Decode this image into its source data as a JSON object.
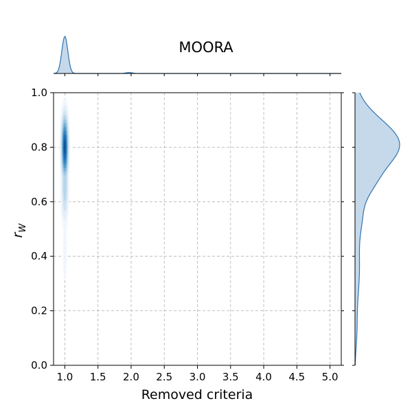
{
  "chart_data": {
    "type": "kde-joint",
    "title": "MOORA",
    "xlabel": "Removed criteria",
    "ylabel_base": "r",
    "ylabel_sub": "W",
    "xlim": [
      0.83,
      5.17
    ],
    "ylim": [
      0,
      1
    ],
    "x_ticks": [
      1.0,
      1.5,
      2.0,
      2.5,
      3.0,
      3.5,
      4.0,
      4.5,
      5.0
    ],
    "x_tick_labels": [
      "1.0",
      "1.5",
      "2.0",
      "2.5",
      "3.0",
      "3.5",
      "4.0",
      "4.5",
      "5.0"
    ],
    "y_ticks": [
      0.0,
      0.2,
      0.4,
      0.6,
      0.8,
      1.0
    ],
    "y_tick_labels": [
      "0.0",
      "0.2",
      "0.4",
      "0.6",
      "0.8",
      "1.0"
    ],
    "grid": true,
    "colors": {
      "fill": "#c5d9eb",
      "line": "#2f73ae",
      "grid": "#b0b0b0"
    },
    "contour_colors": [
      "#f1f7fd",
      "#e1edf8",
      "#cde0f1",
      "#b3d2e9",
      "#93c3df",
      "#6fabd4",
      "#4a95c6",
      "#2e7ebc",
      "#1764ab",
      "#0c4c8f"
    ],
    "joint_components": [
      {
        "x": 1.0,
        "y": 0.8,
        "sx": 0.038,
        "sy": 0.085,
        "w": 1.0
      },
      {
        "x": 1.0,
        "y": 0.66,
        "sx": 0.04,
        "sy": 0.1,
        "w": 0.45
      },
      {
        "x": 1.0,
        "y": 0.42,
        "sx": 0.045,
        "sy": 0.16,
        "w": 0.12
      },
      {
        "x": 1.02,
        "y": 0.12,
        "sx": 0.05,
        "sy": 0.12,
        "w": 0.05
      },
      {
        "x": 1.95,
        "y": 0.85,
        "sx": 0.025,
        "sy": 0.06,
        "w": 0.06
      },
      {
        "x": 1.97,
        "y": 0.66,
        "sx": 0.02,
        "sy": 0.07,
        "w": 0.025
      }
    ],
    "marginal_x": [
      {
        "x": 1.0,
        "s": 0.045,
        "w": 1.0
      },
      {
        "x": 1.97,
        "s": 0.05,
        "w": 0.025
      }
    ],
    "marginal_y": [
      {
        "y": 0.81,
        "s": 0.09,
        "w": 1.0
      },
      {
        "y": 0.66,
        "s": 0.05,
        "w": 0.18
      },
      {
        "y": 0.55,
        "s": 0.06,
        "w": 0.12
      },
      {
        "y": 0.36,
        "s": 0.12,
        "w": 0.1
      },
      {
        "y": 0.12,
        "s": 0.06,
        "w": 0.03
      }
    ]
  }
}
